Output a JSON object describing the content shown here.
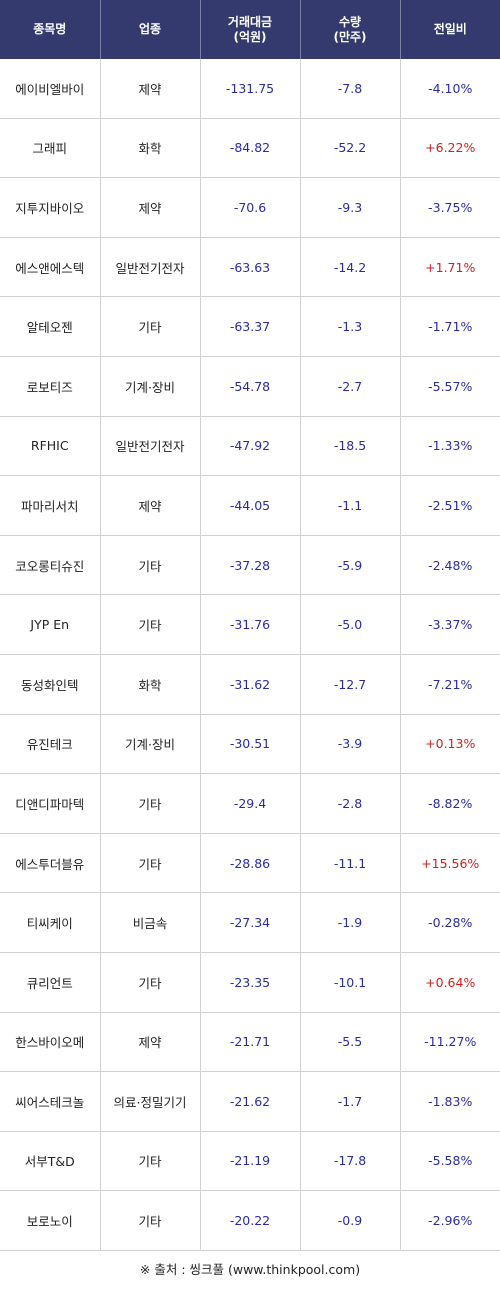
{
  "table": {
    "headers": [
      {
        "line1": "종목명",
        "line2": ""
      },
      {
        "line1": "업종",
        "line2": ""
      },
      {
        "line1": "거래대금",
        "line2": "(억원)"
      },
      {
        "line1": "수량",
        "line2": "(만주)"
      },
      {
        "line1": "전일비",
        "line2": ""
      }
    ],
    "rows": [
      {
        "name": "에이비엘바이",
        "sector": "제약",
        "amount": "-131.75",
        "volume": "-7.8",
        "change": "-4.10%",
        "dir": "down"
      },
      {
        "name": "그래피",
        "sector": "화학",
        "amount": "-84.82",
        "volume": "-52.2",
        "change": "+6.22%",
        "dir": "up"
      },
      {
        "name": "지투지바이오",
        "sector": "제약",
        "amount": "-70.6",
        "volume": "-9.3",
        "change": "-3.75%",
        "dir": "down"
      },
      {
        "name": "에스앤에스텍",
        "sector": "일반전기전자",
        "amount": "-63.63",
        "volume": "-14.2",
        "change": "+1.71%",
        "dir": "up"
      },
      {
        "name": "알테오젠",
        "sector": "기타",
        "amount": "-63.37",
        "volume": "-1.3",
        "change": "-1.71%",
        "dir": "down"
      },
      {
        "name": "로보티즈",
        "sector": "기계·장비",
        "amount": "-54.78",
        "volume": "-2.7",
        "change": "-5.57%",
        "dir": "down"
      },
      {
        "name": "RFHIC",
        "sector": "일반전기전자",
        "amount": "-47.92",
        "volume": "-18.5",
        "change": "-1.33%",
        "dir": "down"
      },
      {
        "name": "파마리서치",
        "sector": "제약",
        "amount": "-44.05",
        "volume": "-1.1",
        "change": "-2.51%",
        "dir": "down"
      },
      {
        "name": "코오롱티슈진",
        "sector": "기타",
        "amount": "-37.28",
        "volume": "-5.9",
        "change": "-2.48%",
        "dir": "down"
      },
      {
        "name": "JYP En",
        "sector": "기타",
        "amount": "-31.76",
        "volume": "-5.0",
        "change": "-3.37%",
        "dir": "down"
      },
      {
        "name": "동성화인텍",
        "sector": "화학",
        "amount": "-31.62",
        "volume": "-12.7",
        "change": "-7.21%",
        "dir": "down"
      },
      {
        "name": "유진테크",
        "sector": "기계·장비",
        "amount": "-30.51",
        "volume": "-3.9",
        "change": "+0.13%",
        "dir": "up"
      },
      {
        "name": "디앤디파마텍",
        "sector": "기타",
        "amount": "-29.4",
        "volume": "-2.8",
        "change": "-8.82%",
        "dir": "down"
      },
      {
        "name": "에스투더블유",
        "sector": "기타",
        "amount": "-28.86",
        "volume": "-11.1",
        "change": "+15.56%",
        "dir": "up"
      },
      {
        "name": "티씨케이",
        "sector": "비금속",
        "amount": "-27.34",
        "volume": "-1.9",
        "change": "-0.28%",
        "dir": "down"
      },
      {
        "name": "큐리언트",
        "sector": "기타",
        "amount": "-23.35",
        "volume": "-10.1",
        "change": "+0.64%",
        "dir": "up"
      },
      {
        "name": "한스바이오메",
        "sector": "제약",
        "amount": "-21.71",
        "volume": "-5.5",
        "change": "-11.27%",
        "dir": "down"
      },
      {
        "name": "씨어스테크놀",
        "sector": "의료·정밀기기",
        "amount": "-21.62",
        "volume": "-1.7",
        "change": "-1.83%",
        "dir": "down"
      },
      {
        "name": "서부T&D",
        "sector": "기타",
        "amount": "-21.19",
        "volume": "-17.8",
        "change": "-5.58%",
        "dir": "down"
      },
      {
        "name": "보로노이",
        "sector": "기타",
        "amount": "-20.22",
        "volume": "-0.9",
        "change": "-2.96%",
        "dir": "down"
      }
    ]
  },
  "footer": {
    "source": "※ 출처 : 씽크풀 (www.thinkpool.com)"
  },
  "colors": {
    "header_bg": "#343a6e",
    "negative": "#2a2aa8",
    "positive": "#d11f1f"
  }
}
